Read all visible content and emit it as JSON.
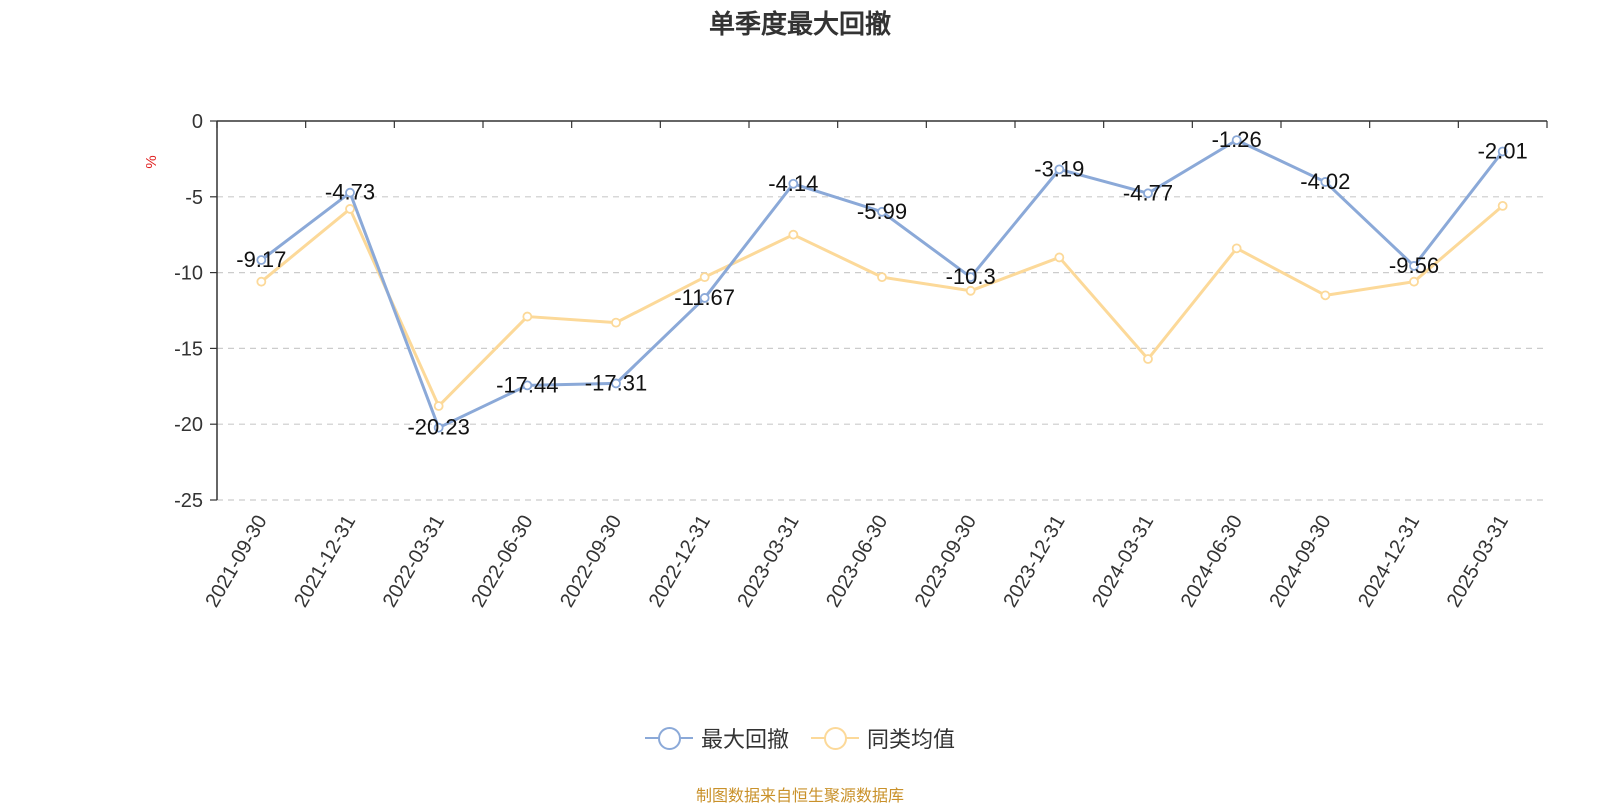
{
  "chart_data": {
    "type": "line",
    "title": "单季度最大回撤",
    "ylabel": "%",
    "xlabel": "",
    "ylim": [
      -25,
      0
    ],
    "yticks": [
      0,
      -5,
      -10,
      -15,
      -20,
      -25
    ],
    "grid": true,
    "legend_position": "bottom",
    "categories": [
      "2021-09-30",
      "2021-12-31",
      "2022-03-31",
      "2022-06-30",
      "2022-09-30",
      "2022-12-31",
      "2023-03-31",
      "2023-06-30",
      "2023-09-30",
      "2023-12-31",
      "2024-03-31",
      "2024-06-30",
      "2024-09-30",
      "2024-12-31",
      "2025-03-31"
    ],
    "series": [
      {
        "name": "最大回撤",
        "color": "#8ba9d8",
        "show_labels": true,
        "values": [
          -9.17,
          -4.73,
          -20.23,
          -17.44,
          -17.31,
          -11.67,
          -4.14,
          -5.99,
          -10.3,
          -3.19,
          -4.77,
          -1.26,
          -4.02,
          -9.56,
          -2.01
        ]
      },
      {
        "name": "同类均值",
        "color": "#fcd999",
        "show_labels": false,
        "values": [
          -10.6,
          -5.8,
          -18.8,
          -12.9,
          -13.3,
          -10.3,
          -7.5,
          -10.3,
          -11.2,
          -9.0,
          -15.7,
          -8.4,
          -11.5,
          -10.6,
          -5.6
        ]
      }
    ]
  },
  "source": "制图数据来自恒生聚源数据库"
}
